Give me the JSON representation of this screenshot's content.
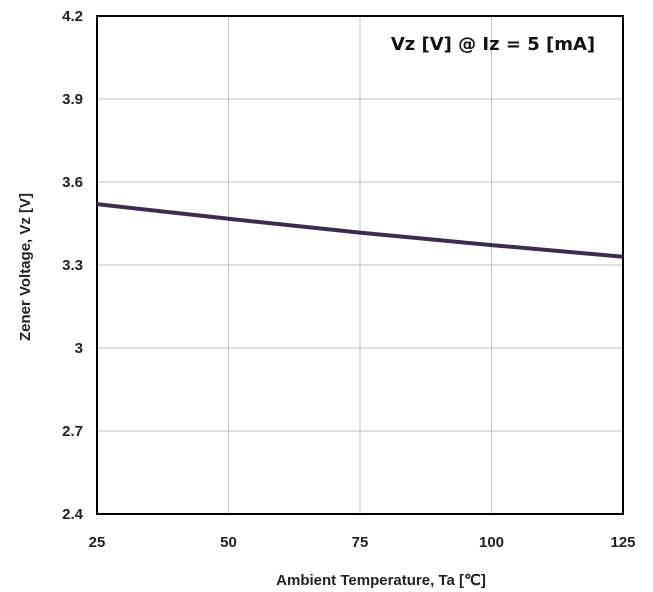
{
  "chart_data": {
    "type": "line",
    "annotation": "Vz [V] @ Iz = 5 [mA]",
    "xlabel": "Ambient Temperature, Ta [℃]",
    "ylabel": "Zener Voltage, Vz [V]",
    "xlim": [
      25,
      125
    ],
    "ylim": [
      2.4,
      4.2
    ],
    "x_ticks": [
      "25",
      "50",
      "75",
      "100",
      "125"
    ],
    "y_ticks": [
      "4.2",
      "3.9",
      "3.6",
      "3.3",
      "3",
      "2.7",
      "2.4"
    ],
    "grid": true,
    "series": [
      {
        "x": [
          25,
          50,
          75,
          100,
          125
        ],
        "values": [
          3.52,
          3.467,
          3.417,
          3.372,
          3.33
        ]
      }
    ],
    "colors": {
      "line": "#3b2d4f",
      "grid": "#c0c0c0",
      "frame": "#000000"
    }
  }
}
